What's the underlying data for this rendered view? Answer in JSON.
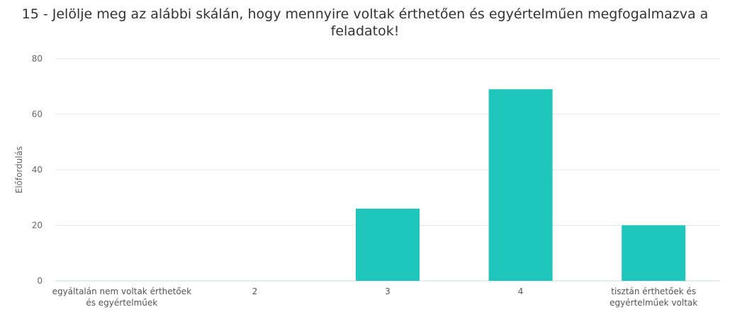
{
  "chart_data": {
    "type": "bar",
    "title_lines": [
      "15 - Jelölje meg az alábbi skálán, hogy mennyire voltak érthetően és egyértelműen megfogalmazva a",
      "feladatok!"
    ],
    "ylabel": "Előfordulás",
    "xlabel": "",
    "ylim": [
      0,
      80
    ],
    "yticks": [
      0,
      20,
      40,
      60,
      80
    ],
    "grid": true,
    "legend": "none",
    "categories": [
      [
        "egyáltalán nem voltak érthetőek",
        "és egyértelműek"
      ],
      [
        "2"
      ],
      [
        "3"
      ],
      [
        "4"
      ],
      [
        "tisztán érthetőek és",
        "egyértelműek voltak"
      ]
    ],
    "values": [
      0,
      0,
      26,
      69,
      20
    ],
    "bar_color": "#1ec6bc"
  }
}
